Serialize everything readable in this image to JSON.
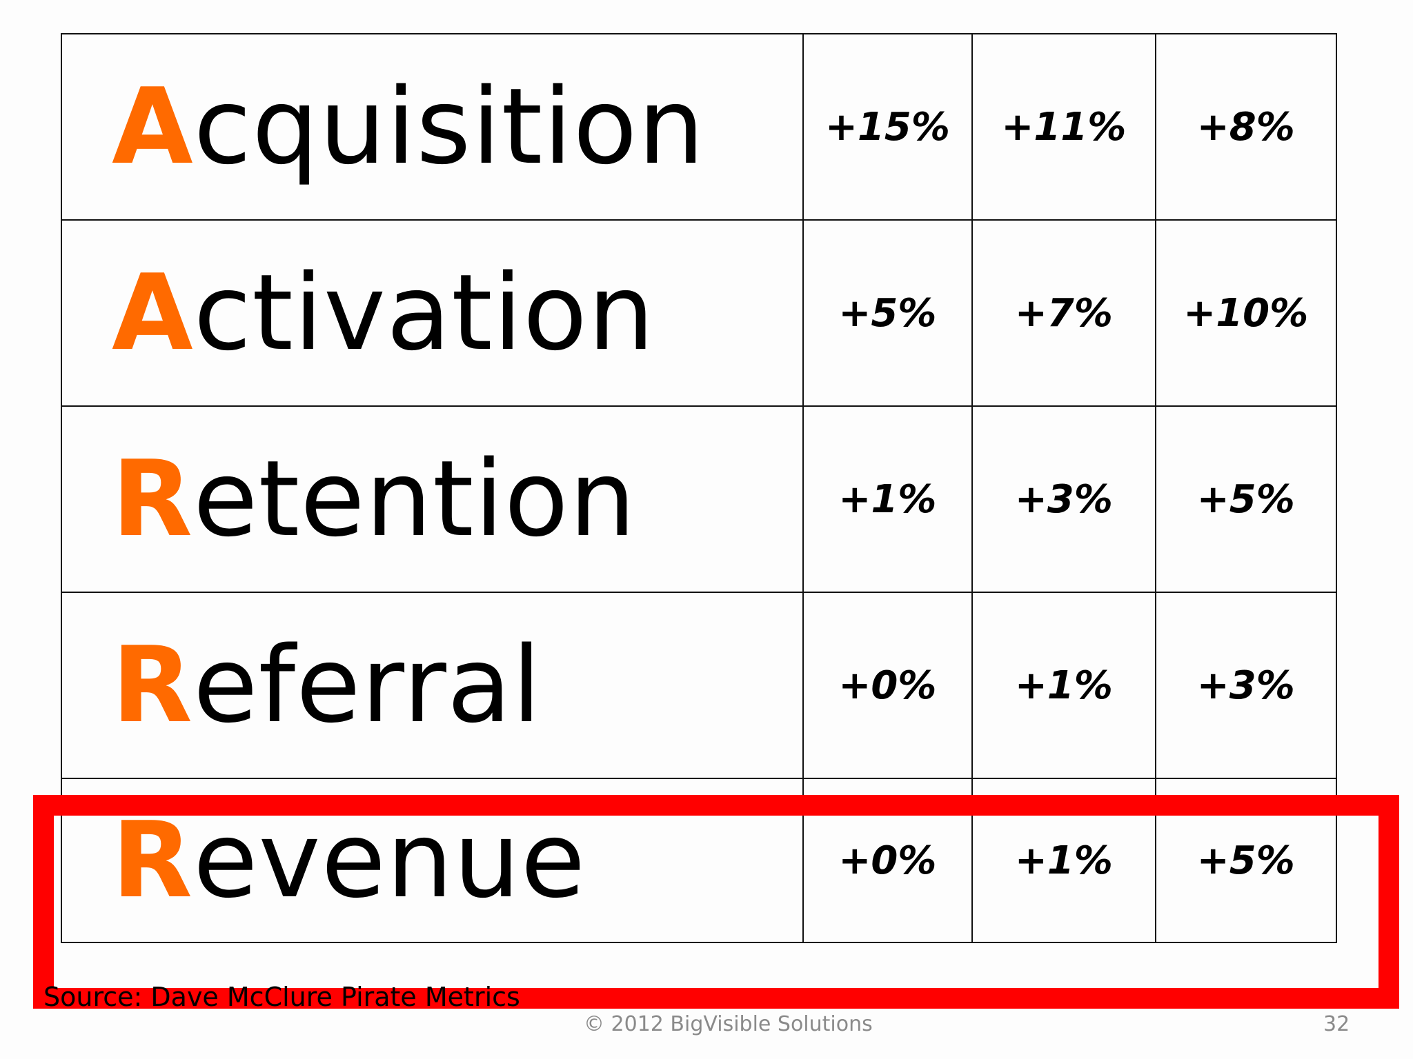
{
  "colors": {
    "initial_letter": "#ff6a00",
    "highlight_border": "#ff0000",
    "text": "#000000",
    "footer_text": "#8a8a8a"
  },
  "metrics_table": {
    "rows": [
      {
        "initial": "A",
        "rest": "cquisition",
        "values": [
          "+15%",
          "+11%",
          "+8%"
        ]
      },
      {
        "initial": "A",
        "rest": "ctivation",
        "values": [
          "+5%",
          "+7%",
          "+10%"
        ]
      },
      {
        "initial": "R",
        "rest": "etention",
        "values": [
          "+1%",
          "+3%",
          "+5%"
        ]
      },
      {
        "initial": "R",
        "rest": "eferral",
        "values": [
          "+0%",
          "+1%",
          "+3%"
        ]
      },
      {
        "initial": "R",
        "rest": "evenue",
        "values": [
          "+0%",
          "+1%",
          "+5%"
        ],
        "highlighted": true
      }
    ]
  },
  "footer": {
    "source": "Source: Dave McClure Pirate Metrics",
    "copyright": "© 2012 BigVisible Solutions",
    "page_number": "32"
  }
}
